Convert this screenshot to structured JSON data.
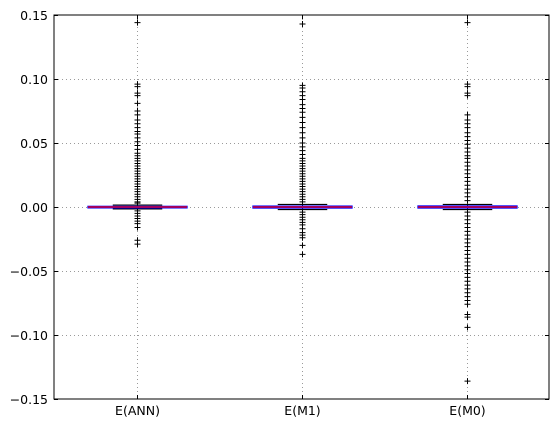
{
  "chart_data": {
    "type": "box",
    "title": "",
    "xlabel": "",
    "ylabel": "",
    "ylim": [
      -0.15,
      0.15
    ],
    "yticks": [
      -0.15,
      -0.1,
      -0.05,
      0.0,
      0.05,
      0.1,
      0.15
    ],
    "ytick_labels": [
      "−0.15",
      "−0.10",
      "−0.05",
      "0.00",
      "0.05",
      "0.10",
      "0.15"
    ],
    "grid": true,
    "categories": [
      "E(ANN)",
      "E(M1)",
      "E(M0)"
    ],
    "boxes": [
      {
        "name": "E(ANN)",
        "q1": -0.0005,
        "median": 0.0,
        "q3": 0.0005,
        "whisker_low": -0.0015,
        "whisker_high": 0.0015,
        "outliers": [
          0.144,
          0.096,
          0.094,
          0.089,
          0.087,
          0.081,
          0.075,
          0.072,
          0.068,
          0.065,
          0.062,
          0.059,
          0.057,
          0.054,
          0.051,
          0.048,
          0.045,
          0.042,
          0.04,
          0.038,
          0.036,
          0.034,
          0.032,
          0.03,
          0.028,
          0.026,
          0.024,
          0.022,
          0.02,
          0.018,
          0.016,
          0.014,
          0.012,
          0.01,
          0.008,
          0.006,
          0.004,
          0.003,
          -0.003,
          -0.005,
          -0.007,
          -0.009,
          -0.011,
          -0.013,
          -0.016,
          -0.026,
          -0.029
        ]
      },
      {
        "name": "E(M1)",
        "q1": -0.0008,
        "median": 0.0,
        "q3": 0.0007,
        "whisker_low": -0.002,
        "whisker_high": 0.002,
        "outliers": [
          0.143,
          0.095,
          0.093,
          0.09,
          0.087,
          0.084,
          0.08,
          0.077,
          0.074,
          0.07,
          0.066,
          0.062,
          0.058,
          0.054,
          0.05,
          0.047,
          0.044,
          0.041,
          0.038,
          0.036,
          0.034,
          0.032,
          0.03,
          0.028,
          0.026,
          0.024,
          0.022,
          0.02,
          0.018,
          0.016,
          0.014,
          0.012,
          0.01,
          0.008,
          0.006,
          0.004,
          -0.004,
          -0.006,
          -0.008,
          -0.01,
          -0.012,
          -0.014,
          -0.017,
          -0.02,
          -0.022,
          -0.024,
          -0.03,
          -0.037
        ]
      },
      {
        "name": "E(M0)",
        "q1": -0.0008,
        "median": 0.0,
        "q3": 0.0008,
        "whisker_low": -0.002,
        "whisker_high": 0.002,
        "outliers": [
          0.144,
          0.096,
          0.094,
          0.089,
          0.087,
          0.072,
          0.068,
          0.065,
          0.062,
          0.058,
          0.055,
          0.052,
          0.049,
          0.046,
          0.043,
          0.04,
          0.038,
          0.035,
          0.032,
          0.029,
          0.026,
          0.023,
          0.02,
          0.017,
          0.014,
          0.011,
          0.008,
          0.005,
          -0.004,
          -0.007,
          -0.01,
          -0.013,
          -0.016,
          -0.019,
          -0.022,
          -0.025,
          -0.028,
          -0.031,
          -0.034,
          -0.037,
          -0.04,
          -0.043,
          -0.046,
          -0.049,
          -0.052,
          -0.055,
          -0.058,
          -0.061,
          -0.064,
          -0.067,
          -0.07,
          -0.073,
          -0.076,
          -0.084,
          -0.086,
          -0.094,
          -0.136
        ]
      }
    ],
    "colors": {
      "box": "#0000ff",
      "median": "#ff0000",
      "whisker": "#000000",
      "flier": "#000000",
      "grid": "#9a9a9a",
      "axes": "#000000"
    }
  }
}
